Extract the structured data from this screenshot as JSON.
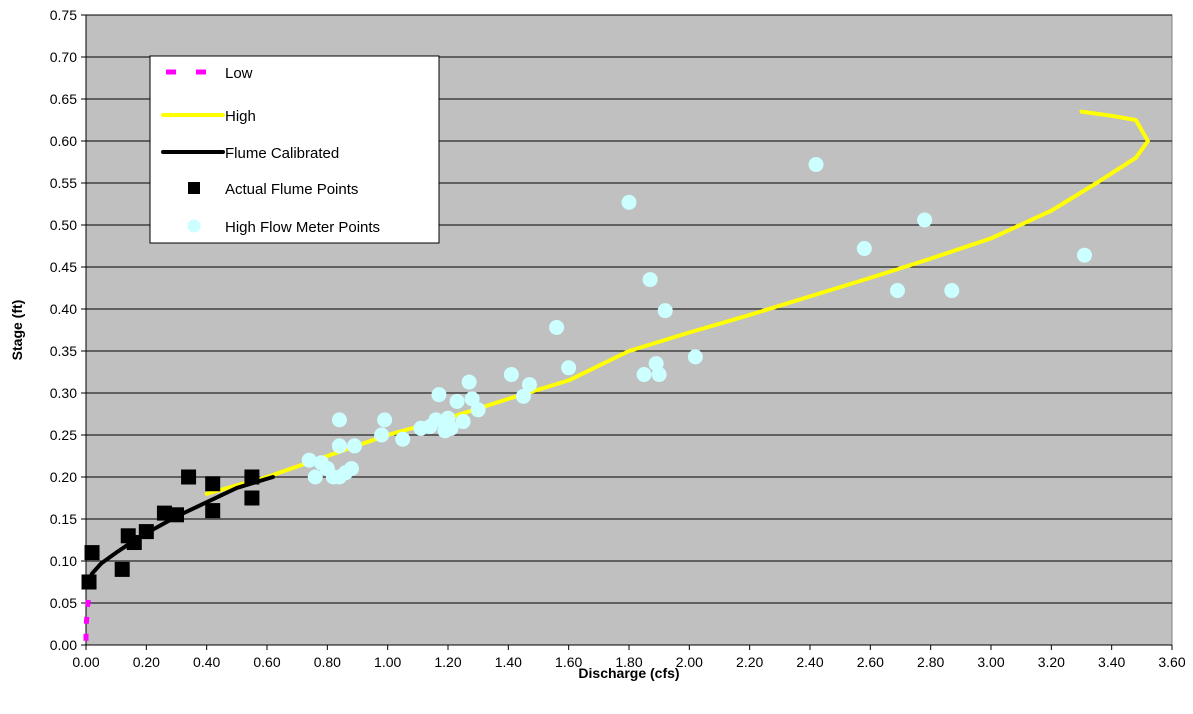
{
  "chart_data": {
    "type": "scatter",
    "xlabel": "Discharge (cfs)",
    "ylabel": "Stage (ft)",
    "xlim": [
      0,
      3.6
    ],
    "ylim": [
      0,
      0.75
    ],
    "x_ticks": [
      "0.00",
      "0.20",
      "0.40",
      "0.60",
      "0.80",
      "1.00",
      "1.20",
      "1.40",
      "1.60",
      "1.80",
      "2.00",
      "2.20",
      "2.40",
      "2.60",
      "2.80",
      "3.00",
      "3.20",
      "3.40",
      "3.60"
    ],
    "y_ticks": [
      "0.00",
      "0.05",
      "0.10",
      "0.15",
      "0.20",
      "0.25",
      "0.30",
      "0.35",
      "0.40",
      "0.45",
      "0.50",
      "0.55",
      "0.60",
      "0.65",
      "0.70",
      "0.75"
    ],
    "grid": "horizontal",
    "legend_placement": "top-left",
    "plot_background": "#c0c0c0",
    "series": [
      {
        "name": "Low",
        "kind": "line",
        "style": "dashed",
        "color": "#ff00ff",
        "points": [
          [
            0.0,
            0.005
          ],
          [
            0.0,
            0.02
          ],
          [
            0.005,
            0.045
          ],
          [
            0.01,
            0.06
          ]
        ]
      },
      {
        "name": "High",
        "kind": "line",
        "style": "solid",
        "color": "#ffff00",
        "points": [
          [
            0.4,
            0.18
          ],
          [
            0.6,
            0.2
          ],
          [
            0.8,
            0.225
          ],
          [
            1.0,
            0.25
          ],
          [
            1.2,
            0.27
          ],
          [
            1.4,
            0.293
          ],
          [
            1.6,
            0.315
          ],
          [
            1.8,
            0.35
          ],
          [
            2.0,
            0.372
          ],
          [
            2.2,
            0.393
          ],
          [
            2.4,
            0.415
          ],
          [
            2.6,
            0.437
          ],
          [
            2.8,
            0.46
          ],
          [
            3.0,
            0.484
          ],
          [
            3.2,
            0.517
          ],
          [
            3.35,
            0.55
          ],
          [
            3.48,
            0.58
          ],
          [
            3.52,
            0.6
          ],
          [
            3.48,
            0.625
          ],
          [
            3.4,
            0.63
          ],
          [
            3.3,
            0.635
          ]
        ]
      },
      {
        "name": "Flume Calibrated",
        "kind": "line",
        "style": "solid",
        "color": "#000000",
        "points": [
          [
            0.0,
            0.07
          ],
          [
            0.02,
            0.085
          ],
          [
            0.05,
            0.097
          ],
          [
            0.1,
            0.11
          ],
          [
            0.15,
            0.122
          ],
          [
            0.2,
            0.133
          ],
          [
            0.3,
            0.153
          ],
          [
            0.4,
            0.17
          ],
          [
            0.5,
            0.187
          ],
          [
            0.62,
            0.2
          ]
        ]
      },
      {
        "name": "Actual Flume Points",
        "kind": "scatter",
        "marker": "square",
        "color": "#000000",
        "points": [
          [
            0.01,
            0.075
          ],
          [
            0.02,
            0.11
          ],
          [
            0.12,
            0.09
          ],
          [
            0.14,
            0.13
          ],
          [
            0.16,
            0.122
          ],
          [
            0.2,
            0.135
          ],
          [
            0.26,
            0.157
          ],
          [
            0.3,
            0.155
          ],
          [
            0.34,
            0.2
          ],
          [
            0.42,
            0.192
          ],
          [
            0.42,
            0.16
          ],
          [
            0.55,
            0.2
          ],
          [
            0.55,
            0.175
          ]
        ]
      },
      {
        "name": "High Flow Meter Points",
        "kind": "scatter",
        "marker": "circle",
        "color": "#ccffff",
        "points": [
          [
            0.74,
            0.22
          ],
          [
            0.76,
            0.2
          ],
          [
            0.78,
            0.217
          ],
          [
            0.8,
            0.21
          ],
          [
            0.82,
            0.2
          ],
          [
            0.84,
            0.2
          ],
          [
            0.84,
            0.237
          ],
          [
            0.84,
            0.268
          ],
          [
            0.86,
            0.205
          ],
          [
            0.88,
            0.21
          ],
          [
            0.89,
            0.237
          ],
          [
            0.98,
            0.25
          ],
          [
            0.99,
            0.268
          ],
          [
            1.05,
            0.245
          ],
          [
            1.11,
            0.258
          ],
          [
            1.14,
            0.26
          ],
          [
            1.16,
            0.268
          ],
          [
            1.17,
            0.298
          ],
          [
            1.19,
            0.255
          ],
          [
            1.2,
            0.27
          ],
          [
            1.21,
            0.258
          ],
          [
            1.23,
            0.29
          ],
          [
            1.25,
            0.266
          ],
          [
            1.27,
            0.313
          ],
          [
            1.28,
            0.293
          ],
          [
            1.3,
            0.28
          ],
          [
            1.41,
            0.322
          ],
          [
            1.45,
            0.296
          ],
          [
            1.47,
            0.31
          ],
          [
            1.56,
            0.378
          ],
          [
            1.6,
            0.33
          ],
          [
            1.8,
            0.527
          ],
          [
            1.85,
            0.322
          ],
          [
            1.87,
            0.435
          ],
          [
            1.89,
            0.335
          ],
          [
            1.9,
            0.322
          ],
          [
            1.92,
            0.398
          ],
          [
            2.02,
            0.343
          ],
          [
            2.42,
            0.572
          ],
          [
            2.58,
            0.472
          ],
          [
            2.69,
            0.422
          ],
          [
            2.78,
            0.506
          ],
          [
            2.87,
            0.422
          ],
          [
            3.31,
            0.464
          ]
        ]
      }
    ]
  }
}
